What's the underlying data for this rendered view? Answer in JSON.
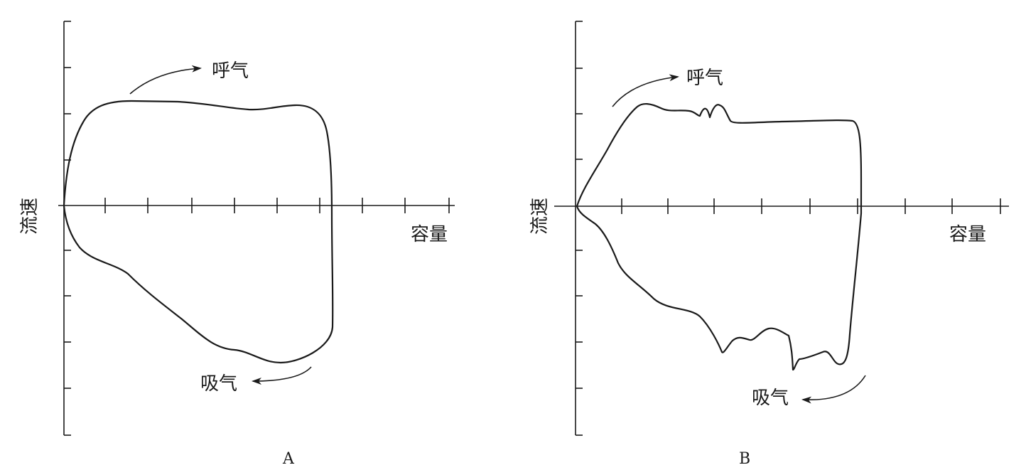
{
  "panels": [
    {
      "id": "A",
      "panel_label": "A",
      "y_axis_label": "流速",
      "x_axis_label": "容量",
      "expiration_label": "呼气",
      "inspiration_label": "吸气"
    },
    {
      "id": "B",
      "panel_label": "B",
      "y_axis_label": "流速",
      "x_axis_label": "容量",
      "expiration_label": "呼气",
      "inspiration_label": "吸气"
    }
  ]
}
